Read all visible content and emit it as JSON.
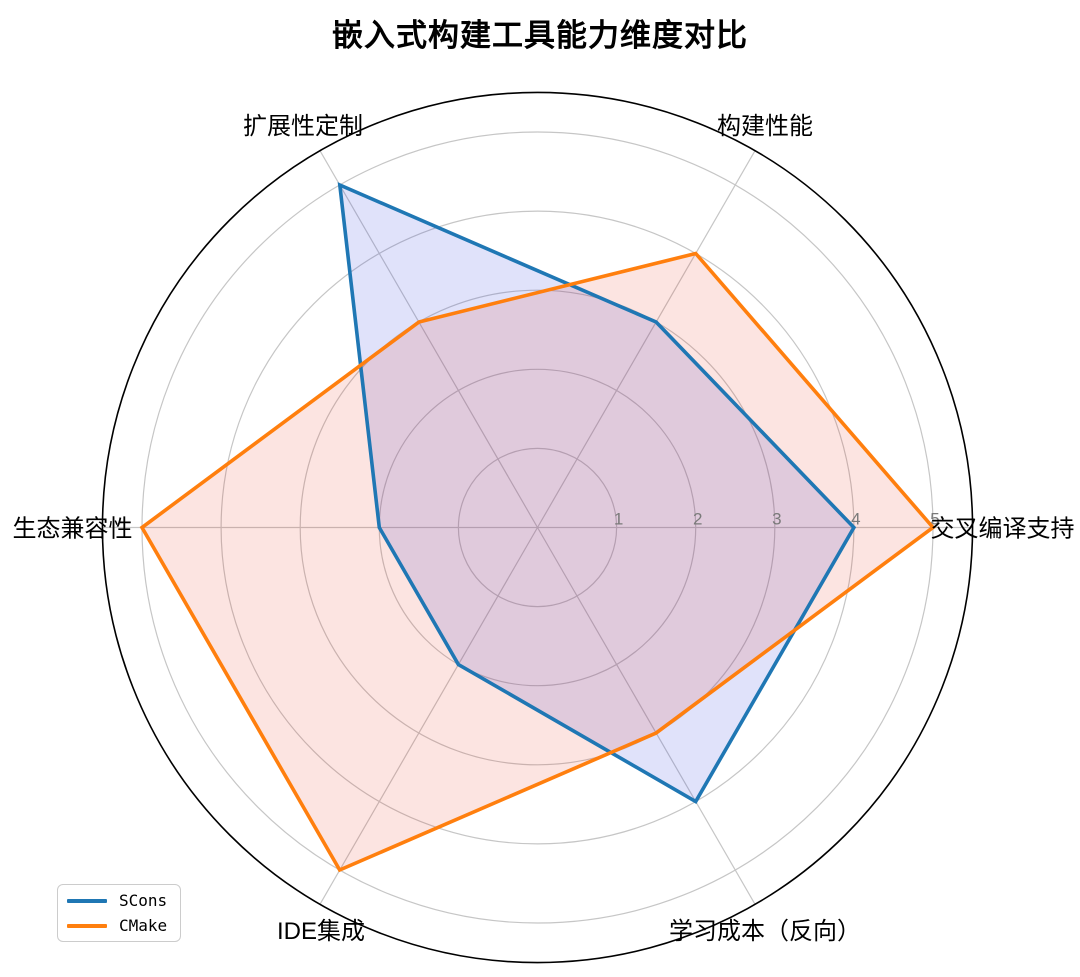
{
  "chart_data": {
    "type": "radar",
    "title": "嵌入式构建工具能力维度对比",
    "categories": [
      "交叉编译支持",
      "构建性能",
      "扩展性定制",
      "生态兼容性",
      "IDE集成",
      "学习成本（反向）"
    ],
    "series": [
      {
        "name": "SCons",
        "color": "#1f77b4",
        "fill": "rgba(48,62,222,0.15)",
        "values": [
          4,
          3,
          5,
          2,
          2,
          4
        ]
      },
      {
        "name": "CMake",
        "color": "#ff7f0e",
        "fill": "rgba(230,30,5,0.12)",
        "values": [
          5,
          4,
          3,
          5,
          5,
          3
        ]
      }
    ],
    "rticks": [
      "1",
      "2",
      "3",
      "4",
      "5"
    ],
    "rlim": [
      0,
      5.5
    ],
    "grid": true,
    "legend_position": "lower left",
    "tick_color": "#7a7a7a",
    "grid_color": "#c6c6c6",
    "spine_color": "#000000"
  }
}
